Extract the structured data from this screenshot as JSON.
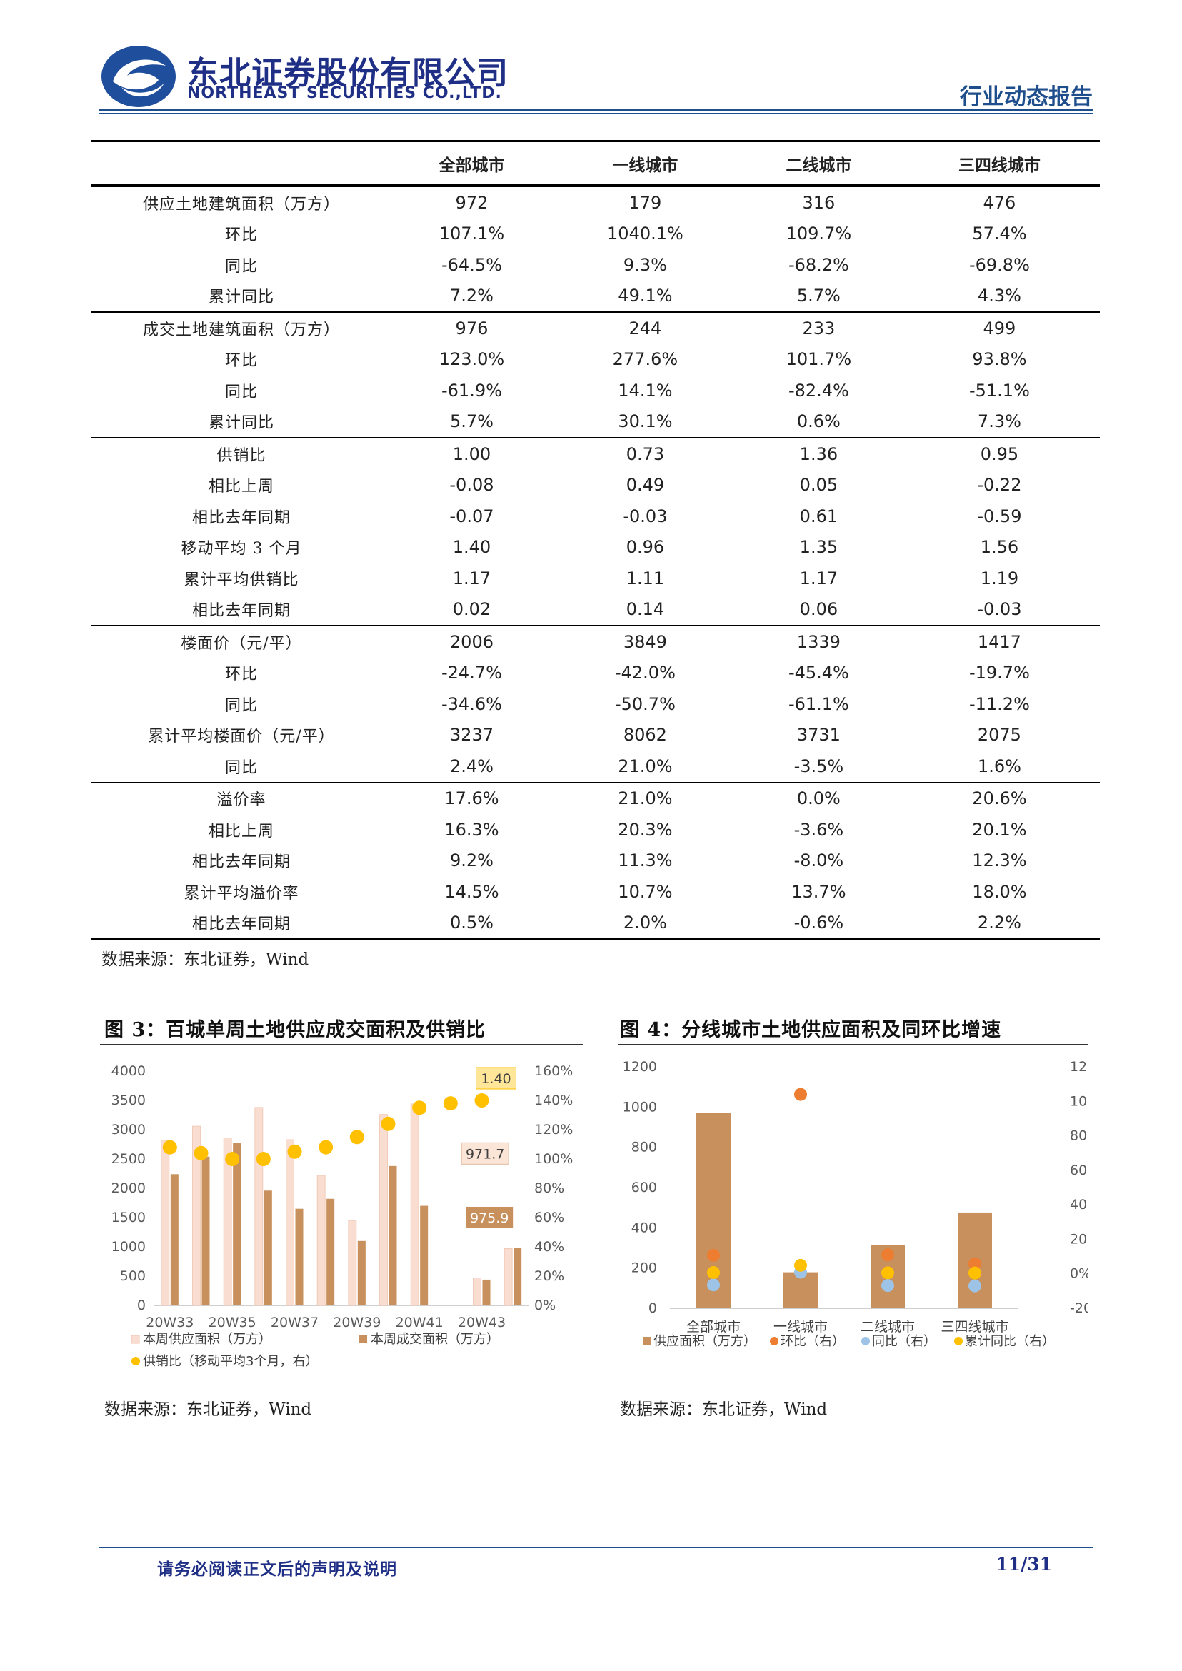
{
  "header": {
    "company_cn": "东北证券股份有限公司",
    "company_en": "NORTHEAST SECURITIES CO.,LTD.",
    "report_type": "行业动态报告"
  },
  "table": {
    "columns": [
      "全部城市",
      "一线城市",
      "二线城市",
      "三四线城市"
    ],
    "groups": [
      {
        "rows": [
          {
            "label": "供应土地建筑面积（万方）",
            "values": [
              "972",
              "179",
              "316",
              "476"
            ]
          },
          {
            "label": "环比",
            "values": [
              "107.1%",
              "1040.1%",
              "109.7%",
              "57.4%"
            ]
          },
          {
            "label": "同比",
            "values": [
              "-64.5%",
              "9.3%",
              "-68.2%",
              "-69.8%"
            ]
          },
          {
            "label": "累计同比",
            "values": [
              "7.2%",
              "49.1%",
              "5.7%",
              "4.3%"
            ]
          }
        ]
      },
      {
        "rows": [
          {
            "label": "成交土地建筑面积（万方）",
            "values": [
              "976",
              "244",
              "233",
              "499"
            ]
          },
          {
            "label": "环比",
            "values": [
              "123.0%",
              "277.6%",
              "101.7%",
              "93.8%"
            ]
          },
          {
            "label": "同比",
            "values": [
              "-61.9%",
              "14.1%",
              "-82.4%",
              "-51.1%"
            ]
          },
          {
            "label": "累计同比",
            "values": [
              "5.7%",
              "30.1%",
              "0.6%",
              "7.3%"
            ]
          }
        ]
      },
      {
        "rows": [
          {
            "label": "供销比",
            "values": [
              "1.00",
              "0.73",
              "1.36",
              "0.95"
            ]
          },
          {
            "label": "相比上周",
            "values": [
              "-0.08",
              "0.49",
              "0.05",
              "-0.22"
            ]
          },
          {
            "label": "相比去年同期",
            "values": [
              "-0.07",
              "-0.03",
              "0.61",
              "-0.59"
            ]
          },
          {
            "label": "移动平均 3 个月",
            "values": [
              "1.40",
              "0.96",
              "1.35",
              "1.56"
            ]
          },
          {
            "label": "累计平均供销比",
            "values": [
              "1.17",
              "1.11",
              "1.17",
              "1.19"
            ]
          },
          {
            "label": "相比去年同期",
            "values": [
              "0.02",
              "0.14",
              "0.06",
              "-0.03"
            ]
          }
        ]
      },
      {
        "rows": [
          {
            "label": "楼面价（元/平）",
            "values": [
              "2006",
              "3849",
              "1339",
              "1417"
            ]
          },
          {
            "label": "环比",
            "values": [
              "-24.7%",
              "-42.0%",
              "-45.4%",
              "-19.7%"
            ]
          },
          {
            "label": "同比",
            "values": [
              "-34.6%",
              "-50.7%",
              "-61.1%",
              "-11.2%"
            ]
          },
          {
            "label": "累计平均楼面价（元/平）",
            "values": [
              "3237",
              "8062",
              "3731",
              "2075"
            ]
          },
          {
            "label": "同比",
            "values": [
              "2.4%",
              "21.0%",
              "-3.5%",
              "1.6%"
            ]
          }
        ]
      },
      {
        "rows": [
          {
            "label": "溢价率",
            "values": [
              "17.6%",
              "21.0%",
              "0.0%",
              "20.6%"
            ]
          },
          {
            "label": "相比上周",
            "values": [
              "16.3%",
              "20.3%",
              "-3.6%",
              "20.1%"
            ]
          },
          {
            "label": "相比去年同期",
            "values": [
              "9.2%",
              "11.3%",
              "-8.0%",
              "12.3%"
            ]
          },
          {
            "label": "累计平均溢价率",
            "values": [
              "14.5%",
              "10.7%",
              "13.7%",
              "18.0%"
            ]
          },
          {
            "label": "相比去年同期",
            "values": [
              "0.5%",
              "2.0%",
              "-0.6%",
              "2.2%"
            ]
          }
        ]
      }
    ],
    "source": "数据来源：东北证券，Wind"
  },
  "fig3": {
    "title": "图 3：百城单周土地供应成交面积及供销比",
    "source": "数据来源：东北证券，Wind"
  },
  "fig4": {
    "title": "图 4：分线城市土地供应面积及同环比增速",
    "source": "数据来源：东北证券，Wind"
  },
  "chart_data": [
    {
      "type": "bar",
      "categories": [
        "20W33",
        "20W34",
        "20W35",
        "20W36",
        "20W37",
        "20W38",
        "20W39",
        "20W40",
        "20W41",
        "20W42",
        "20W43",
        "20W44"
      ],
      "x_tick_labels": [
        "20W33",
        "20W35",
        "20W37",
        "20W39",
        "20W41",
        "20W43"
      ],
      "series": [
        {
          "name": "本周供应面积（万方）",
          "kind": "bar",
          "axis": "left",
          "color": "#f8ddd0",
          "values": [
            2820,
            3060,
            2860,
            3380,
            2830,
            2220,
            1450,
            3260,
            3440,
            null,
            470,
            971.7
          ]
        },
        {
          "name": "本周成交面积（万方）",
          "kind": "bar",
          "axis": "left",
          "color": "#c7905c",
          "values": [
            2240,
            2540,
            2780,
            1960,
            1650,
            1820,
            1100,
            2380,
            1700,
            null,
            440,
            975.9
          ]
        },
        {
          "name": "供销比（移动平均3个月，右）",
          "kind": "dot",
          "axis": "right",
          "color": "#ffc000",
          "values": [
            1.08,
            1.04,
            1.0,
            1.0,
            1.05,
            1.08,
            1.15,
            1.24,
            1.35,
            1.38,
            1.4,
            null
          ]
        }
      ],
      "annotations": [
        "1.40",
        "971.7",
        "975.9"
      ],
      "ylim_left": [
        0,
        4000
      ],
      "yticks_left": [
        "0",
        "500",
        "1000",
        "1500",
        "2000",
        "2500",
        "3000",
        "3500",
        "4000"
      ],
      "ylim_right": [
        0,
        1.6
      ],
      "yticks_right": [
        "0%",
        "20%",
        "40%",
        "60%",
        "80%",
        "100%",
        "120%",
        "140%",
        "160%"
      ],
      "legend_position": "bottom"
    },
    {
      "type": "bar",
      "categories": [
        "全部城市",
        "一线城市",
        "二线城市",
        "三四线城市"
      ],
      "series": [
        {
          "name": "供应面积（万方）",
          "kind": "bar",
          "axis": "left",
          "color": "#c7905c",
          "values": [
            972,
            179,
            316,
            476
          ]
        },
        {
          "name": "环比（右）",
          "kind": "dot",
          "axis": "right",
          "color": "#ed7d31",
          "values": [
            107.1,
            1040.1,
            109.7,
            57.4
          ]
        },
        {
          "name": "同比（右）",
          "kind": "dot",
          "axis": "right",
          "color": "#9dc3e6",
          "values": [
            -64.5,
            9.3,
            -68.2,
            -69.8
          ]
        },
        {
          "name": "累计同比（右）",
          "kind": "dot",
          "axis": "right",
          "color": "#ffc000",
          "values": [
            7.2,
            49.1,
            5.7,
            4.3
          ]
        }
      ],
      "ylim_left": [
        0,
        1200
      ],
      "yticks_left": [
        "0",
        "200",
        "400",
        "600",
        "800",
        "1000",
        "1200"
      ],
      "ylim_right": [
        -200,
        1200
      ],
      "yticks_right": [
        "-200%",
        "0%",
        "200%",
        "400%",
        "600%",
        "800%",
        "1000%",
        "1200%"
      ],
      "legend_position": "bottom"
    }
  ],
  "footer": {
    "disclaimer": "请务必阅读正文后的声明及说明",
    "page": "11/31"
  }
}
